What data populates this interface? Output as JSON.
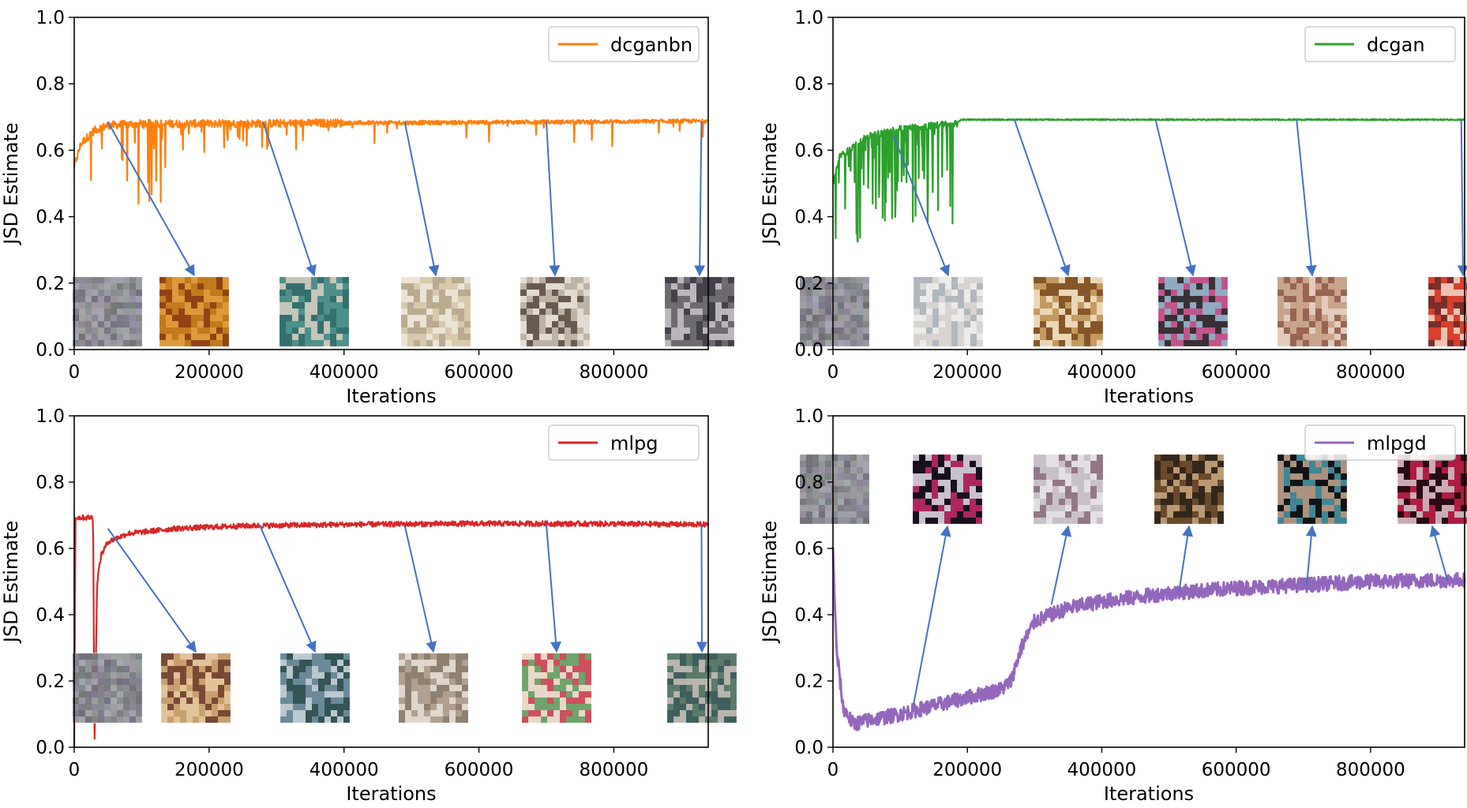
{
  "chart_data": [
    {
      "type": "line",
      "legend": "dcganbn",
      "legend_position": "top-right",
      "color": "#ff7f0e",
      "xlabel": "Iterations",
      "ylabel": "JSD Estimate",
      "xlim": [
        0,
        940000
      ],
      "ylim": [
        0.0,
        1.0
      ],
      "xticks": [
        "0",
        "200000",
        "400000",
        "600000",
        "800000"
      ],
      "yticks": [
        "0.0",
        "0.2",
        "0.4",
        "0.6",
        "0.8",
        "1.0"
      ],
      "series": [
        {
          "name": "dcganbn",
          "x": [
            0,
            10000,
            30000,
            50000,
            100000,
            200000,
            400000,
            600000,
            800000,
            940000
          ],
          "y": [
            0.55,
            0.62,
            0.66,
            0.675,
            0.68,
            0.68,
            0.682,
            0.684,
            0.686,
            0.688
          ]
        }
      ],
      "sample_iterations": [
        0,
        180000,
        360000,
        540000,
        720000,
        900000
      ],
      "annotation_anchors": [
        {
          "x": 50000,
          "y": 0.685
        },
        {
          "x": 280000,
          "y": 0.685
        },
        {
          "x": 490000,
          "y": 0.685
        },
        {
          "x": 700000,
          "y": 0.685
        },
        {
          "x": 930000,
          "y": 0.685
        }
      ]
    },
    {
      "type": "line",
      "legend": "dcgan",
      "legend_position": "top-right",
      "color": "#2ca02c",
      "xlabel": "Iterations",
      "ylabel": "JSD Estimate",
      "xlim": [
        0,
        940000
      ],
      "ylim": [
        0.0,
        1.0
      ],
      "xticks": [
        "0",
        "200000",
        "400000",
        "600000",
        "800000"
      ],
      "yticks": [
        "0.0",
        "0.2",
        "0.4",
        "0.6",
        "0.8",
        "1.0"
      ],
      "series": [
        {
          "name": "dcgan",
          "x": [
            0,
            10000,
            50000,
            100000,
            150000,
            185000,
            190000,
            400000,
            600000,
            800000,
            940000
          ],
          "y": [
            0.5,
            0.58,
            0.64,
            0.665,
            0.675,
            0.68,
            0.692,
            0.692,
            0.692,
            0.692,
            0.692
          ]
        }
      ],
      "sample_iterations": [
        0,
        180000,
        360000,
        540000,
        720000,
        900000
      ],
      "annotation_anchors": [
        {
          "x": 90000,
          "y": 0.645
        },
        {
          "x": 270000,
          "y": 0.692
        },
        {
          "x": 480000,
          "y": 0.692
        },
        {
          "x": 690000,
          "y": 0.692
        },
        {
          "x": 935000,
          "y": 0.692
        }
      ]
    },
    {
      "type": "line",
      "legend": "mlpg",
      "legend_position": "top-right",
      "color": "#d62728",
      "xlabel": "Iterations",
      "ylabel": "JSD Estimate",
      "xlim": [
        0,
        940000
      ],
      "ylim": [
        0.0,
        1.0
      ],
      "xticks": [
        "0",
        "200000",
        "400000",
        "600000",
        "800000"
      ],
      "yticks": [
        "0.0",
        "0.2",
        "0.4",
        "0.6",
        "0.8",
        "1.0"
      ],
      "series": [
        {
          "name": "mlpg",
          "x": [
            0,
            2000,
            28000,
            30000,
            34000,
            40000,
            50000,
            80000,
            150000,
            250000,
            400000,
            600000,
            800000,
            940000
          ],
          "y": [
            0.0,
            0.693,
            0.693,
            0.0,
            0.5,
            0.58,
            0.62,
            0.645,
            0.66,
            0.668,
            0.672,
            0.675,
            0.674,
            0.672
          ]
        }
      ],
      "sample_iterations": [
        0,
        180000,
        360000,
        540000,
        720000,
        900000
      ],
      "annotation_anchors": [
        {
          "x": 50000,
          "y": 0.66
        },
        {
          "x": 275000,
          "y": 0.67
        },
        {
          "x": 490000,
          "y": 0.67
        },
        {
          "x": 700000,
          "y": 0.672
        },
        {
          "x": 930000,
          "y": 0.67
        }
      ]
    },
    {
      "type": "line",
      "legend": "mlpgd",
      "legend_position": "top-right",
      "color": "#9467bd",
      "xlabel": "Iterations",
      "ylabel": "JSD Estimate",
      "xlim": [
        0,
        940000
      ],
      "ylim": [
        0.0,
        1.0
      ],
      "xticks": [
        "0",
        "200000",
        "400000",
        "600000",
        "800000"
      ],
      "yticks": [
        "0.0",
        "0.2",
        "0.4",
        "0.6",
        "0.8",
        "1.0"
      ],
      "series": [
        {
          "name": "mlpgd",
          "x": [
            0,
            5000,
            15000,
            30000,
            50000,
            100000,
            150000,
            200000,
            250000,
            265000,
            280000,
            300000,
            350000,
            400000,
            500000,
            600000,
            700000,
            800000,
            940000
          ],
          "y": [
            0.6,
            0.3,
            0.12,
            0.07,
            0.08,
            0.1,
            0.125,
            0.15,
            0.175,
            0.2,
            0.3,
            0.38,
            0.42,
            0.44,
            0.465,
            0.48,
            0.49,
            0.5,
            0.505
          ]
        }
      ],
      "sample_iterations": [
        0,
        180000,
        360000,
        540000,
        720000,
        900000
      ],
      "annotation_anchors": [
        {
          "x": 120000,
          "y": 0.13
        },
        {
          "x": 325000,
          "y": 0.43
        },
        {
          "x": 515000,
          "y": 0.47
        },
        {
          "x": 705000,
          "y": 0.49
        },
        {
          "x": 915000,
          "y": 0.5
        }
      ]
    }
  ]
}
